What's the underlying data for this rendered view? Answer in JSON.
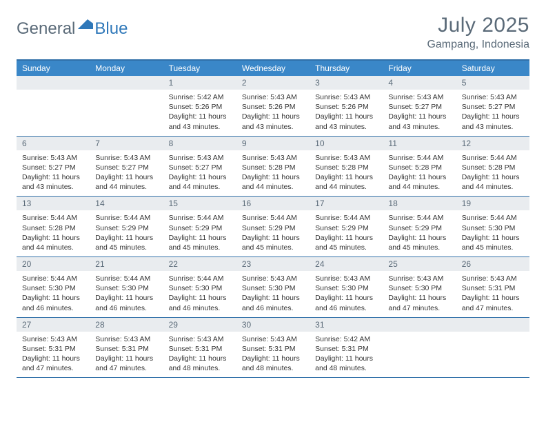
{
  "logo": {
    "text1": "General",
    "text2": "Blue"
  },
  "title": {
    "month": "July 2025",
    "location": "Gampang, Indonesia"
  },
  "colors": {
    "header_bar": "#3a87c8",
    "week_border": "#2f6fa8",
    "daynum_bg": "#e9ecef",
    "text_muted": "#5a6a78",
    "logo_blue": "#2f78b9",
    "background": "#ffffff"
  },
  "typography": {
    "title_fontsize": 30,
    "location_fontsize": 16,
    "dow_fontsize": 12,
    "daynum_fontsize": 12,
    "body_fontsize": 10.5
  },
  "dow": [
    "Sunday",
    "Monday",
    "Tuesday",
    "Wednesday",
    "Thursday",
    "Friday",
    "Saturday"
  ],
  "weeks": [
    [
      null,
      null,
      {
        "n": "1",
        "sr": "Sunrise: 5:42 AM",
        "ss": "Sunset: 5:26 PM",
        "dl1": "Daylight: 11 hours",
        "dl2": "and 43 minutes."
      },
      {
        "n": "2",
        "sr": "Sunrise: 5:43 AM",
        "ss": "Sunset: 5:26 PM",
        "dl1": "Daylight: 11 hours",
        "dl2": "and 43 minutes."
      },
      {
        "n": "3",
        "sr": "Sunrise: 5:43 AM",
        "ss": "Sunset: 5:26 PM",
        "dl1": "Daylight: 11 hours",
        "dl2": "and 43 minutes."
      },
      {
        "n": "4",
        "sr": "Sunrise: 5:43 AM",
        "ss": "Sunset: 5:27 PM",
        "dl1": "Daylight: 11 hours",
        "dl2": "and 43 minutes."
      },
      {
        "n": "5",
        "sr": "Sunrise: 5:43 AM",
        "ss": "Sunset: 5:27 PM",
        "dl1": "Daylight: 11 hours",
        "dl2": "and 43 minutes."
      }
    ],
    [
      {
        "n": "6",
        "sr": "Sunrise: 5:43 AM",
        "ss": "Sunset: 5:27 PM",
        "dl1": "Daylight: 11 hours",
        "dl2": "and 43 minutes."
      },
      {
        "n": "7",
        "sr": "Sunrise: 5:43 AM",
        "ss": "Sunset: 5:27 PM",
        "dl1": "Daylight: 11 hours",
        "dl2": "and 44 minutes."
      },
      {
        "n": "8",
        "sr": "Sunrise: 5:43 AM",
        "ss": "Sunset: 5:27 PM",
        "dl1": "Daylight: 11 hours",
        "dl2": "and 44 minutes."
      },
      {
        "n": "9",
        "sr": "Sunrise: 5:43 AM",
        "ss": "Sunset: 5:28 PM",
        "dl1": "Daylight: 11 hours",
        "dl2": "and 44 minutes."
      },
      {
        "n": "10",
        "sr": "Sunrise: 5:43 AM",
        "ss": "Sunset: 5:28 PM",
        "dl1": "Daylight: 11 hours",
        "dl2": "and 44 minutes."
      },
      {
        "n": "11",
        "sr": "Sunrise: 5:44 AM",
        "ss": "Sunset: 5:28 PM",
        "dl1": "Daylight: 11 hours",
        "dl2": "and 44 minutes."
      },
      {
        "n": "12",
        "sr": "Sunrise: 5:44 AM",
        "ss": "Sunset: 5:28 PM",
        "dl1": "Daylight: 11 hours",
        "dl2": "and 44 minutes."
      }
    ],
    [
      {
        "n": "13",
        "sr": "Sunrise: 5:44 AM",
        "ss": "Sunset: 5:28 PM",
        "dl1": "Daylight: 11 hours",
        "dl2": "and 44 minutes."
      },
      {
        "n": "14",
        "sr": "Sunrise: 5:44 AM",
        "ss": "Sunset: 5:29 PM",
        "dl1": "Daylight: 11 hours",
        "dl2": "and 45 minutes."
      },
      {
        "n": "15",
        "sr": "Sunrise: 5:44 AM",
        "ss": "Sunset: 5:29 PM",
        "dl1": "Daylight: 11 hours",
        "dl2": "and 45 minutes."
      },
      {
        "n": "16",
        "sr": "Sunrise: 5:44 AM",
        "ss": "Sunset: 5:29 PM",
        "dl1": "Daylight: 11 hours",
        "dl2": "and 45 minutes."
      },
      {
        "n": "17",
        "sr": "Sunrise: 5:44 AM",
        "ss": "Sunset: 5:29 PM",
        "dl1": "Daylight: 11 hours",
        "dl2": "and 45 minutes."
      },
      {
        "n": "18",
        "sr": "Sunrise: 5:44 AM",
        "ss": "Sunset: 5:29 PM",
        "dl1": "Daylight: 11 hours",
        "dl2": "and 45 minutes."
      },
      {
        "n": "19",
        "sr": "Sunrise: 5:44 AM",
        "ss": "Sunset: 5:30 PM",
        "dl1": "Daylight: 11 hours",
        "dl2": "and 45 minutes."
      }
    ],
    [
      {
        "n": "20",
        "sr": "Sunrise: 5:44 AM",
        "ss": "Sunset: 5:30 PM",
        "dl1": "Daylight: 11 hours",
        "dl2": "and 46 minutes."
      },
      {
        "n": "21",
        "sr": "Sunrise: 5:44 AM",
        "ss": "Sunset: 5:30 PM",
        "dl1": "Daylight: 11 hours",
        "dl2": "and 46 minutes."
      },
      {
        "n": "22",
        "sr": "Sunrise: 5:44 AM",
        "ss": "Sunset: 5:30 PM",
        "dl1": "Daylight: 11 hours",
        "dl2": "and 46 minutes."
      },
      {
        "n": "23",
        "sr": "Sunrise: 5:43 AM",
        "ss": "Sunset: 5:30 PM",
        "dl1": "Daylight: 11 hours",
        "dl2": "and 46 minutes."
      },
      {
        "n": "24",
        "sr": "Sunrise: 5:43 AM",
        "ss": "Sunset: 5:30 PM",
        "dl1": "Daylight: 11 hours",
        "dl2": "and 46 minutes."
      },
      {
        "n": "25",
        "sr": "Sunrise: 5:43 AM",
        "ss": "Sunset: 5:30 PM",
        "dl1": "Daylight: 11 hours",
        "dl2": "and 47 minutes."
      },
      {
        "n": "26",
        "sr": "Sunrise: 5:43 AM",
        "ss": "Sunset: 5:31 PM",
        "dl1": "Daylight: 11 hours",
        "dl2": "and 47 minutes."
      }
    ],
    [
      {
        "n": "27",
        "sr": "Sunrise: 5:43 AM",
        "ss": "Sunset: 5:31 PM",
        "dl1": "Daylight: 11 hours",
        "dl2": "and 47 minutes."
      },
      {
        "n": "28",
        "sr": "Sunrise: 5:43 AM",
        "ss": "Sunset: 5:31 PM",
        "dl1": "Daylight: 11 hours",
        "dl2": "and 47 minutes."
      },
      {
        "n": "29",
        "sr": "Sunrise: 5:43 AM",
        "ss": "Sunset: 5:31 PM",
        "dl1": "Daylight: 11 hours",
        "dl2": "and 48 minutes."
      },
      {
        "n": "30",
        "sr": "Sunrise: 5:43 AM",
        "ss": "Sunset: 5:31 PM",
        "dl1": "Daylight: 11 hours",
        "dl2": "and 48 minutes."
      },
      {
        "n": "31",
        "sr": "Sunrise: 5:42 AM",
        "ss": "Sunset: 5:31 PM",
        "dl1": "Daylight: 11 hours",
        "dl2": "and 48 minutes."
      },
      null,
      null
    ]
  ]
}
